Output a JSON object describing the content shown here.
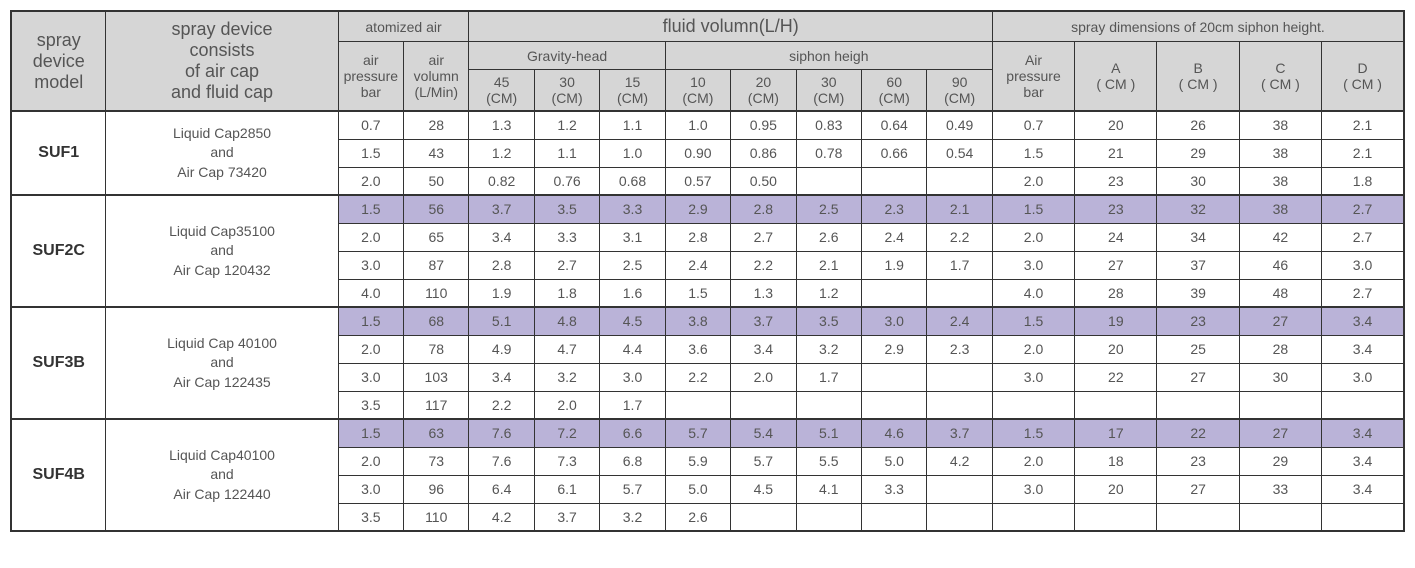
{
  "headers": {
    "model": "spray\ndevice\nmodel",
    "consists": "spray device\nconsists\nof air cap\nand fluid cap",
    "atomized": "atomized air",
    "air_pressure": "air\npressure\nbar",
    "air_volumn": "air\nvolumn\n(L/Min)",
    "fluid_volumn": "fluid volumn(L/H)",
    "gravity_head": "Gravity-head",
    "siphon_heigh": "siphon heigh",
    "g45": "45\n(CM)",
    "g30": "30\n(CM)",
    "g15": "15\n(CM)",
    "s10": "10\n(CM)",
    "s20": "20\n(CM)",
    "s30": "30\n(CM)",
    "s60": "60\n(CM)",
    "s90": "90\n(CM)",
    "spray_dims": "spray dimensions of 20cm siphon height.",
    "air_pressure2": "Air\npressure\nbar",
    "A": "A\n( CM )",
    "B": "B\n( CM )",
    "C": "C\n( CM )",
    "D": "D\n( CM )"
  },
  "groups": [
    {
      "model": "SUF1",
      "desc": "Liquid Cap2850\nand\nAir Cap  73420",
      "rows": [
        {
          "hl": false,
          "v": [
            "0.7",
            "28",
            "1.3",
            "1.2",
            "1.1",
            "1.0",
            "0.95",
            "0.83",
            "0.64",
            "0.49",
            "0.7",
            "20",
            "26",
            "38",
            "2.1"
          ]
        },
        {
          "hl": false,
          "v": [
            "1.5",
            "43",
            "1.2",
            "1.1",
            "1.0",
            "0.90",
            "0.86",
            "0.78",
            "0.66",
            "0.54",
            "1.5",
            "21",
            "29",
            "38",
            "2.1"
          ]
        },
        {
          "hl": false,
          "v": [
            "2.0",
            "50",
            "0.82",
            "0.76",
            "0.68",
            "0.57",
            "0.50",
            "",
            "",
            "",
            "2.0",
            "23",
            "30",
            "38",
            "1.8"
          ]
        }
      ]
    },
    {
      "model": "SUF2C",
      "desc": "Liquid Cap35100\nand\nAir Cap  120432",
      "rows": [
        {
          "hl": true,
          "v": [
            "1.5",
            "56",
            "3.7",
            "3.5",
            "3.3",
            "2.9",
            "2.8",
            "2.5",
            "2.3",
            "2.1",
            "1.5",
            "23",
            "32",
            "38",
            "2.7"
          ]
        },
        {
          "hl": false,
          "v": [
            "2.0",
            "65",
            "3.4",
            "3.3",
            "3.1",
            "2.8",
            "2.7",
            "2.6",
            "2.4",
            "2.2",
            "2.0",
            "24",
            "34",
            "42",
            "2.7"
          ]
        },
        {
          "hl": false,
          "v": [
            "3.0",
            "87",
            "2.8",
            "2.7",
            "2.5",
            "2.4",
            "2.2",
            "2.1",
            "1.9",
            "1.7",
            "3.0",
            "27",
            "37",
            "46",
            "3.0"
          ]
        },
        {
          "hl": false,
          "v": [
            "4.0",
            "110",
            "1.9",
            "1.8",
            "1.6",
            "1.5",
            "1.3",
            "1.2",
            "",
            "",
            "4.0",
            "28",
            "39",
            "48",
            "2.7"
          ]
        }
      ]
    },
    {
      "model": "SUF3B",
      "desc": "Liquid Cap 40100\nand\nAir Cap  122435",
      "rows": [
        {
          "hl": true,
          "v": [
            "1.5",
            "68",
            "5.1",
            "4.8",
            "4.5",
            "3.8",
            "3.7",
            "3.5",
            "3.0",
            "2.4",
            "1.5",
            "19",
            "23",
            "27",
            "3.4"
          ]
        },
        {
          "hl": false,
          "v": [
            "2.0",
            "78",
            "4.9",
            "4.7",
            "4.4",
            "3.6",
            "3.4",
            "3.2",
            "2.9",
            "2.3",
            "2.0",
            "20",
            "25",
            "28",
            "3.4"
          ]
        },
        {
          "hl": false,
          "v": [
            "3.0",
            "103",
            "3.4",
            "3.2",
            "3.0",
            "2.2",
            "2.0",
            "1.7",
            "",
            "",
            "3.0",
            "22",
            "27",
            "30",
            "3.0"
          ]
        },
        {
          "hl": false,
          "v": [
            "3.5",
            "117",
            "2.2",
            "2.0",
            "1.7",
            "",
            "",
            "",
            "",
            "",
            "",
            "",
            "",
            "",
            ""
          ]
        }
      ]
    },
    {
      "model": "SUF4B",
      "desc": "Liquid Cap40100\nand\nAir Cap  122440",
      "rows": [
        {
          "hl": true,
          "v": [
            "1.5",
            "63",
            "7.6",
            "7.2",
            "6.6",
            "5.7",
            "5.4",
            "5.1",
            "4.6",
            "3.7",
            "1.5",
            "17",
            "22",
            "27",
            "3.4"
          ]
        },
        {
          "hl": false,
          "v": [
            "2.0",
            "73",
            "7.6",
            "7.3",
            "6.8",
            "5.9",
            "5.7",
            "5.5",
            "5.0",
            "4.2",
            "2.0",
            "18",
            "23",
            "29",
            "3.4"
          ]
        },
        {
          "hl": false,
          "v": [
            "3.0",
            "96",
            "6.4",
            "6.1",
            "5.7",
            "5.0",
            "4.5",
            "4.1",
            "3.3",
            "",
            "3.0",
            "20",
            "27",
            "33",
            "3.4"
          ]
        },
        {
          "hl": false,
          "v": [
            "3.5",
            "110",
            "4.2",
            "3.7",
            "3.2",
            "2.6",
            "",
            "",
            "",
            "",
            "",
            "",
            "",
            "",
            ""
          ]
        }
      ]
    }
  ],
  "colWidths": [
    "90",
    "220",
    "62",
    "62",
    "62",
    "62",
    "62",
    "62",
    "62",
    "62",
    "62",
    "62",
    "78",
    "78",
    "78",
    "78",
    "78"
  ]
}
